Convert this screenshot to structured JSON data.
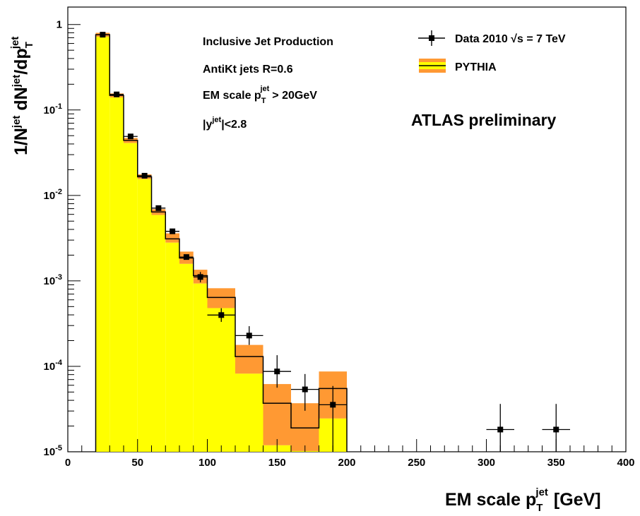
{
  "chart_data": {
    "type": "histogram",
    "xlim": [
      0,
      400
    ],
    "ylim": [
      1e-05,
      1.6
    ],
    "yscale": "log",
    "x_ticks": [
      0,
      50,
      100,
      150,
      200,
      250,
      300,
      350,
      400
    ],
    "x_tick_labels": [
      "0",
      "50",
      "100",
      "150",
      "200",
      "250",
      "300",
      "350",
      "400"
    ],
    "y_ticks": [
      {
        "value": 1,
        "base": "1",
        "exp": ""
      },
      {
        "value": 0.1,
        "base": "10",
        "exp": "-1"
      },
      {
        "value": 0.01,
        "base": "10",
        "exp": "-2"
      },
      {
        "value": 0.001,
        "base": "10",
        "exp": "-3"
      },
      {
        "value": 0.0001,
        "base": "10",
        "exp": "-4"
      },
      {
        "value": 1e-05,
        "base": "10",
        "exp": "-5"
      }
    ],
    "xlabel": {
      "main": "EM scale p",
      "sub": "T",
      "sup": "jet",
      "unit": "[GeV]"
    },
    "ylabel": {
      "p1": "1/N",
      "s1": "jet",
      "p2": " dN",
      "s2": "jet",
      "p3": "/dp",
      "sub": "T",
      "s3": "jet"
    },
    "annotations": {
      "line1": "Inclusive Jet Production",
      "line2": "AntiKt jets R=0.6",
      "line3_main": "EM scale p",
      "line3_sub": "T",
      "line3_sup": "jet",
      "line3_rest": "> 20GeV",
      "line4_pre": "|y",
      "line4_sup": "jet",
      "line4_rest": "|<2.8",
      "atlas": "ATLAS preliminary"
    },
    "legend": {
      "data_pre": "Data 2010",
      "data_sqrt": "√s",
      "data_post": "= 7 TeV",
      "mc": "PYTHIA",
      "placement": "top-right"
    },
    "colors": {
      "mc_fill": "#ffff00",
      "mc_band": "#ff9933",
      "line": "#000000"
    },
    "series": [
      {
        "name": "PYTHIA",
        "kind": "histogram",
        "bins": [
          {
            "lo": 20,
            "hi": 30,
            "value": 0.76,
            "band": [
              0.72,
              0.8
            ]
          },
          {
            "lo": 30,
            "hi": 40,
            "value": 0.148,
            "band": [
              0.14,
              0.156
            ]
          },
          {
            "lo": 40,
            "hi": 50,
            "value": 0.044,
            "band": [
              0.041,
              0.047
            ]
          },
          {
            "lo": 50,
            "hi": 60,
            "value": 0.0165,
            "band": [
              0.0155,
              0.0176
            ]
          },
          {
            "lo": 60,
            "hi": 70,
            "value": 0.0064,
            "band": [
              0.0059,
              0.0069
            ]
          },
          {
            "lo": 70,
            "hi": 80,
            "value": 0.0031,
            "band": [
              0.0028,
              0.0036
            ]
          },
          {
            "lo": 80,
            "hi": 90,
            "value": 0.00185,
            "band": [
              0.00158,
              0.0022
            ]
          },
          {
            "lo": 90,
            "hi": 100,
            "value": 0.00115,
            "band": [
              0.00093,
              0.00135
            ]
          },
          {
            "lo": 100,
            "hi": 120,
            "value": 0.00064,
            "band": [
              0.00048,
              0.00082
            ]
          },
          {
            "lo": 120,
            "hi": 140,
            "value": 0.00013,
            "band": [
              8.2e-05,
              0.000178
            ]
          },
          {
            "lo": 140,
            "hi": 160,
            "value": 3.7e-05,
            "band": [
              1.19e-05,
              6.2e-05
            ]
          },
          {
            "lo": 160,
            "hi": 180,
            "value": 1.9e-05,
            "band": [
              1.02e-05,
              3.7e-05
            ]
          },
          {
            "lo": 180,
            "hi": 200,
            "value": 5.5e-05,
            "band": [
              2.45e-05,
              8.7e-05
            ]
          }
        ]
      },
      {
        "name": "Data 2010 √s = 7 TeV",
        "kind": "points",
        "points": [
          {
            "x": 25,
            "xerr": 5,
            "y": 0.76,
            "ylo": 0.76,
            "yhi": 0.76
          },
          {
            "x": 35,
            "xerr": 5,
            "y": 0.152,
            "ylo": 0.152,
            "yhi": 0.152
          },
          {
            "x": 45,
            "xerr": 5,
            "y": 0.049,
            "ylo": 0.049,
            "yhi": 0.049
          },
          {
            "x": 55,
            "xerr": 5,
            "y": 0.017,
            "ylo": 0.017,
            "yhi": 0.017
          },
          {
            "x": 65,
            "xerr": 5,
            "y": 0.0071,
            "ylo": 0.0071,
            "yhi": 0.0071
          },
          {
            "x": 75,
            "xerr": 5,
            "y": 0.0038,
            "ylo": 0.0038,
            "yhi": 0.0038
          },
          {
            "x": 85,
            "xerr": 5,
            "y": 0.0019,
            "ylo": 0.00181,
            "yhi": 0.002
          },
          {
            "x": 95,
            "xerr": 5,
            "y": 0.00111,
            "ylo": 0.00096,
            "yhi": 0.00127
          },
          {
            "x": 110,
            "xerr": 10,
            "y": 0.000398,
            "ylo": 0.000331,
            "yhi": 0.000479
          },
          {
            "x": 130,
            "xerr": 10,
            "y": 0.000229,
            "ylo": 0.000178,
            "yhi": 0.000295
          },
          {
            "x": 150,
            "xerr": 10,
            "y": 8.71e-05,
            "ylo": 5.62e-05,
            "yhi": 0.000135
          },
          {
            "x": 170,
            "xerr": 10,
            "y": 5.37e-05,
            "ylo": 3.02e-05,
            "yhi": 8.13e-05
          },
          {
            "x": 190,
            "xerr": 10,
            "y": 3.55e-05,
            "ylo": 1e-05,
            "yhi": 5.89e-05
          },
          {
            "x": 310,
            "xerr": 10,
            "y": 1.82e-05,
            "ylo": 1e-05,
            "yhi": 3.63e-05
          },
          {
            "x": 350,
            "xerr": 10,
            "y": 1.82e-05,
            "ylo": 1e-05,
            "yhi": 3.63e-05
          }
        ]
      }
    ]
  }
}
